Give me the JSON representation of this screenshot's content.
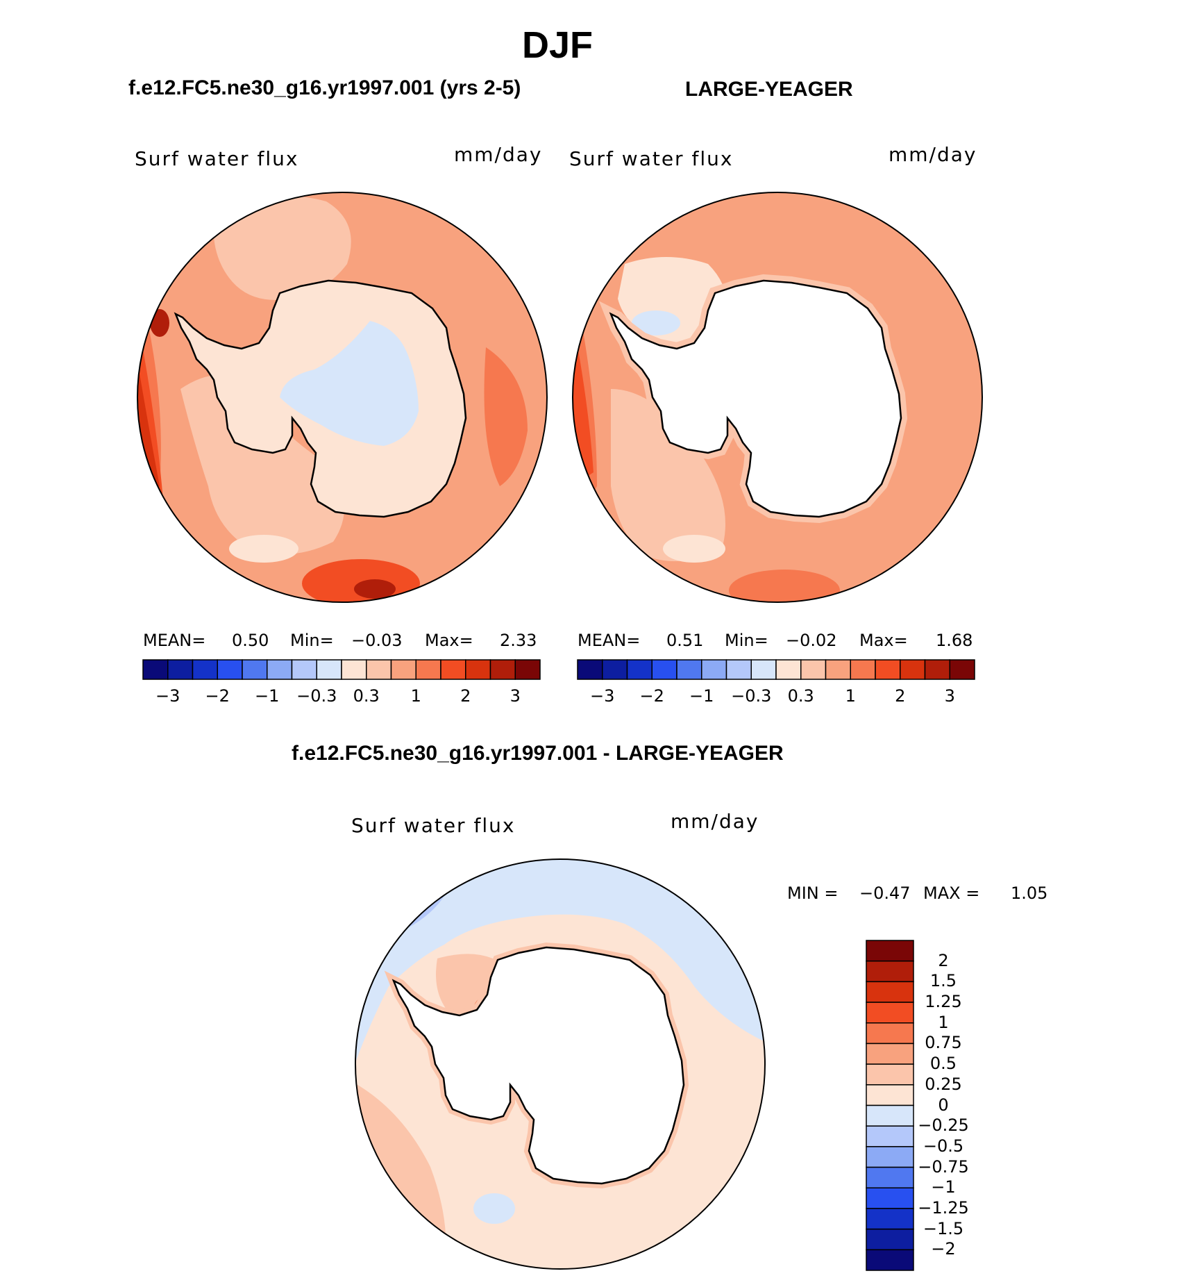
{
  "page": {
    "title": "DJF",
    "left_case": "f.e12.FC5.ne30_g16.yr1997.001 (yrs 2-5)",
    "right_case": "LARGE-YEAGER",
    "diff_title": "f.e12.FC5.ne30_g16.yr1997.001 - LARGE-YEAGER"
  },
  "panels": {
    "left": {
      "variable": "Surf water flux",
      "units": "mm/day",
      "mean_label": "MEAN=",
      "mean": "0.50",
      "min_label": "Min=",
      "min": "−0.03",
      "max_label": "Max=",
      "max": "2.33"
    },
    "right": {
      "variable": "Surf water flux",
      "units": "mm/day",
      "mean_label": "MEAN=",
      "mean": "0.51",
      "min_label": "Min=",
      "min": "−0.02",
      "max_label": "Max=",
      "max": "1.68"
    },
    "diff": {
      "variable": "Surf water flux",
      "units": "mm/day",
      "min_label": "MIN =",
      "min": "−0.47",
      "max_label": "MAX =",
      "max": "1.05"
    }
  },
  "colorbars": {
    "main": {
      "colors": [
        "#0a0a78",
        "#0d1ea0",
        "#1432c8",
        "#2850f0",
        "#5078f0",
        "#8caaf5",
        "#b4c8fa",
        "#d7e6fa",
        "#fde4d4",
        "#fbc5ab",
        "#f8a27e",
        "#f6784f",
        "#f24d23",
        "#d8330e",
        "#b01e0a",
        "#7a0606"
      ],
      "ticks": [
        "−3",
        "−2",
        "−1",
        "−0.3",
        "0.3",
        "1",
        "2",
        "3"
      ]
    },
    "diff": {
      "colors": [
        "#7a0606",
        "#b01e0a",
        "#d8330e",
        "#f24d23",
        "#f6784f",
        "#f8a27e",
        "#fbc5ab",
        "#fde4d4",
        "#d7e6fa",
        "#b4c8fa",
        "#8caaf5",
        "#5078f0",
        "#2850f0",
        "#1432c8",
        "#0d1ea0",
        "#0a0a78"
      ],
      "ticks": [
        "2",
        "1.5",
        "1.25",
        "1",
        "0.75",
        "0.5",
        "0.25",
        "0",
        "−0.25",
        "−0.5",
        "−0.75",
        "−1",
        "−1.25",
        "−1.5",
        "−2"
      ]
    }
  }
}
